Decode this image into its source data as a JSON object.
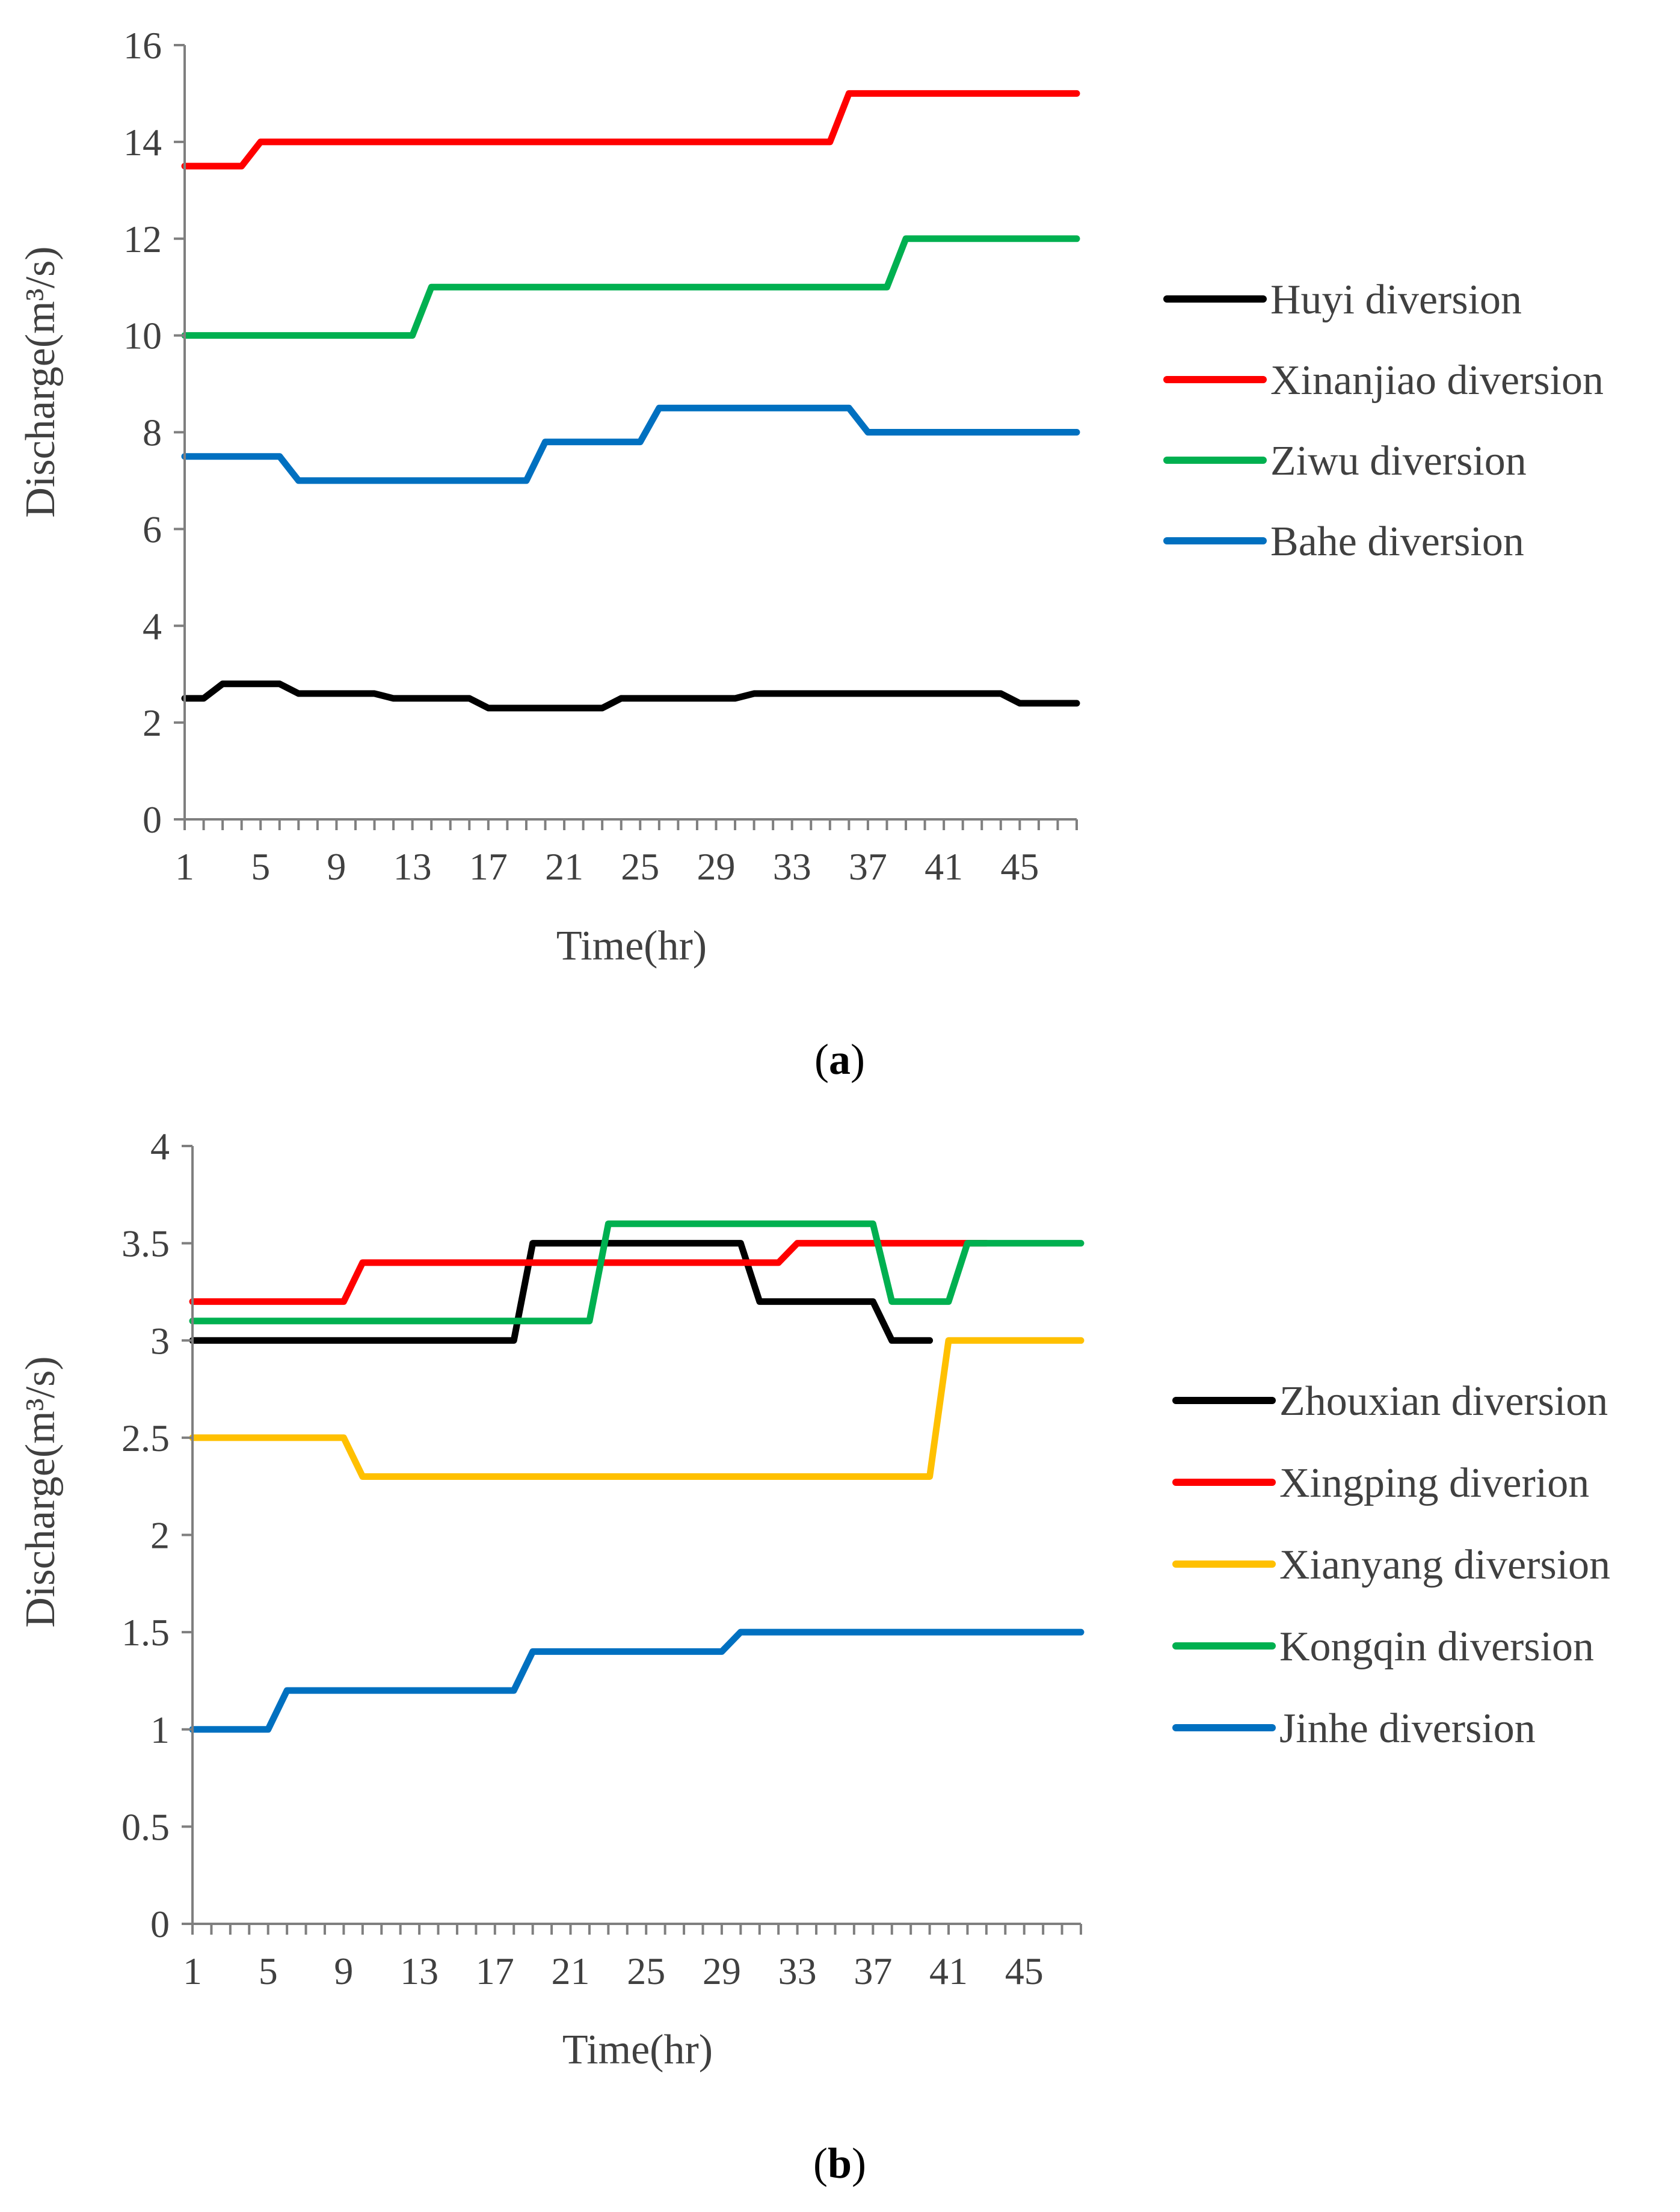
{
  "chart_data": [
    {
      "type": "line",
      "title": "",
      "caption": {
        "open": "(",
        "letter": "a",
        "close": ")"
      },
      "xlabel": "Time(hr)",
      "ylabel": "Discharge(m³/s)",
      "xlim": [
        1,
        48
      ],
      "ylim": [
        0,
        16
      ],
      "x_ticks": [
        1,
        5,
        9,
        13,
        17,
        21,
        25,
        29,
        33,
        37,
        41,
        45
      ],
      "y_ticks": [
        0,
        2,
        4,
        6,
        8,
        10,
        12,
        14,
        16
      ],
      "grid": false,
      "legend_position": "right",
      "series": [
        {
          "name": "Huyi diversion",
          "color": "#000000",
          "points": [
            [
              1,
              2.5
            ],
            [
              2,
              2.5
            ],
            [
              3,
              2.8
            ],
            [
              6,
              2.8
            ],
            [
              7,
              2.6
            ],
            [
              11,
              2.6
            ],
            [
              12,
              2.5
            ],
            [
              16,
              2.5
            ],
            [
              17,
              2.3
            ],
            [
              23,
              2.3
            ],
            [
              24,
              2.5
            ],
            [
              30,
              2.5
            ],
            [
              31,
              2.6
            ],
            [
              44,
              2.6
            ],
            [
              45,
              2.4
            ],
            [
              48,
              2.4
            ]
          ]
        },
        {
          "name": "Xinanjiao diversion",
          "color": "#ff0000",
          "points": [
            [
              1,
              13.5
            ],
            [
              4,
              13.5
            ],
            [
              5,
              14
            ],
            [
              35,
              14
            ],
            [
              36,
              15
            ],
            [
              48,
              15
            ]
          ]
        },
        {
          "name": "Ziwu diversion",
          "color": "#00b050",
          "points": [
            [
              1,
              10
            ],
            [
              13,
              10
            ],
            [
              14,
              11
            ],
            [
              38,
              11
            ],
            [
              39,
              12
            ],
            [
              48,
              12
            ]
          ]
        },
        {
          "name": "Bahe diversion",
          "color": "#0070c0",
          "points": [
            [
              1,
              7.5
            ],
            [
              6,
              7.5
            ],
            [
              7,
              7
            ],
            [
              19,
              7
            ],
            [
              20,
              7.8
            ],
            [
              25,
              7.8
            ],
            [
              26,
              8.5
            ],
            [
              36,
              8.5
            ],
            [
              37,
              8
            ],
            [
              48,
              8
            ]
          ]
        }
      ]
    },
    {
      "type": "line",
      "title": "",
      "caption": {
        "open": "(",
        "letter": "b",
        "close": ")"
      },
      "xlabel": "Time(hr)",
      "ylabel": "Discharge(m³/s)",
      "xlim": [
        1,
        48
      ],
      "ylim": [
        0,
        4
      ],
      "x_ticks": [
        1,
        5,
        9,
        13,
        17,
        21,
        25,
        29,
        33,
        37,
        41,
        45
      ],
      "y_ticks": [
        0,
        0.5,
        1,
        1.5,
        2,
        2.5,
        3,
        3.5,
        4
      ],
      "grid": false,
      "legend_position": "right",
      "series": [
        {
          "name": "Zhouxian diversion",
          "color": "#000000",
          "points": [
            [
              1,
              3
            ],
            [
              18,
              3
            ],
            [
              19,
              3.5
            ],
            [
              30,
              3.5
            ],
            [
              31,
              3.2
            ],
            [
              37,
              3.2
            ],
            [
              38,
              3
            ],
            [
              40,
              3
            ]
          ]
        },
        {
          "name": "Xingping diverion",
          "color": "#ff0000",
          "points": [
            [
              1,
              3.2
            ],
            [
              9,
              3.2
            ],
            [
              10,
              3.4
            ],
            [
              32,
              3.4
            ],
            [
              33,
              3.5
            ],
            [
              43,
              3.5
            ]
          ]
        },
        {
          "name": "Xianyang diversion",
          "color": "#ffc000",
          "points": [
            [
              1,
              2.5
            ],
            [
              9,
              2.5
            ],
            [
              10,
              2.3
            ],
            [
              40,
              2.3
            ],
            [
              41,
              3
            ],
            [
              48,
              3
            ]
          ]
        },
        {
          "name": "Kongqin diversion",
          "color": "#00b050",
          "points": [
            [
              1,
              3.1
            ],
            [
              22,
              3.1
            ],
            [
              23,
              3.6
            ],
            [
              37,
              3.6
            ],
            [
              38,
              3.2
            ],
            [
              41,
              3.2
            ],
            [
              42,
              3.5
            ],
            [
              48,
              3.5
            ]
          ]
        },
        {
          "name": "Jinhe diversion",
          "color": "#0070c0",
          "points": [
            [
              1,
              1
            ],
            [
              5,
              1
            ],
            [
              6,
              1.2
            ],
            [
              18,
              1.2
            ],
            [
              19,
              1.4
            ],
            [
              29,
              1.4
            ],
            [
              30,
              1.5
            ],
            [
              48,
              1.5
            ]
          ]
        }
      ]
    }
  ]
}
